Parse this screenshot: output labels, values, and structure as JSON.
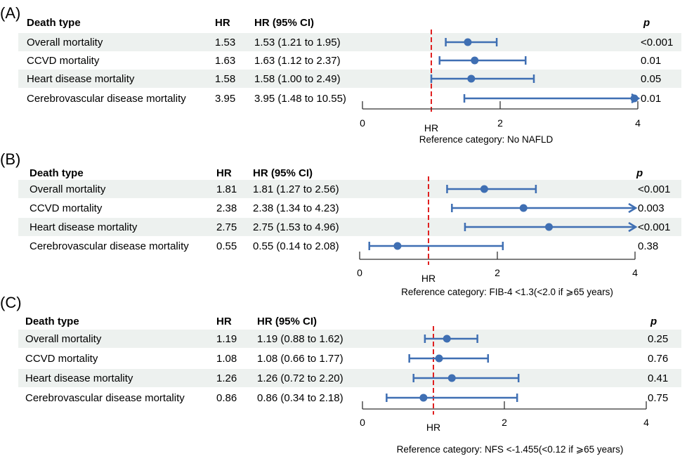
{
  "chart_data": [
    {
      "type": "forest",
      "panel_label": "(A)",
      "headers": {
        "death_type": "Death type",
        "hr": "HR",
        "hr_ci": "HR (95% CI)",
        "p": "p"
      },
      "rows": [
        {
          "label": "Overall mortality",
          "hr": 1.53,
          "hr_text": "1.53",
          "ci_text": "1.53 (1.21 to 1.95)",
          "lo": 1.21,
          "hi": 1.95,
          "p": "<0.001"
        },
        {
          "label": "CCVD mortality",
          "hr": 1.63,
          "hr_text": "1.63",
          "ci_text": "1.63 (1.12 to 2.37)",
          "lo": 1.12,
          "hi": 2.37,
          "p": "0.01"
        },
        {
          "label": "Heart disease mortality",
          "hr": 1.58,
          "hr_text": "1.58",
          "ci_text": "1.58 (1.00 to 2.49)",
          "lo": 1.0,
          "hi": 2.49,
          "p": "0.05"
        },
        {
          "label": "Cerebrovascular disease mortality",
          "hr": 3.95,
          "hr_text": "3.95",
          "ci_text": "3.95 (1.48 to 10.55)",
          "lo": 1.48,
          "hi": 10.55,
          "p": "0.01"
        }
      ],
      "xlim": [
        0,
        4
      ],
      "xticks": [
        "0",
        "2",
        "4"
      ],
      "xlabel": "HR",
      "reference_line": 1,
      "reference_text": "Reference category: No NAFLD"
    },
    {
      "type": "forest",
      "panel_label": "(B)",
      "headers": {
        "death_type": "Death type",
        "hr": "HR",
        "hr_ci": "HR (95% CI)",
        "p": "p"
      },
      "rows": [
        {
          "label": "Overall mortality",
          "hr": 1.81,
          "hr_text": "1.81",
          "ci_text": "1.81 (1.27 to 2.56)",
          "lo": 1.27,
          "hi": 2.56,
          "p": "<0.001"
        },
        {
          "label": "CCVD mortality",
          "hr": 2.38,
          "hr_text": "2.38",
          "ci_text": "2.38 (1.34 to 4.23)",
          "lo": 1.34,
          "hi": 4.23,
          "p": "0.003"
        },
        {
          "label": "Heart disease mortality",
          "hr": 2.75,
          "hr_text": "2.75",
          "ci_text": "2.75 (1.53 to 4.96)",
          "lo": 1.53,
          "hi": 4.96,
          "p": "<0.001"
        },
        {
          "label": "Cerebrovascular disease mortality",
          "hr": 0.55,
          "hr_text": "0.55",
          "ci_text": "0.55 (0.14 to 2.08)",
          "lo": 0.14,
          "hi": 2.08,
          "p": "0.38"
        }
      ],
      "xlim": [
        0,
        4
      ],
      "xticks": [
        "0",
        "2",
        "4"
      ],
      "xlabel": "HR",
      "reference_line": 1,
      "reference_text": "Reference category: FIB-4 <1.3(<2.0 if ⩾65 years)"
    },
    {
      "type": "forest",
      "panel_label": "(C)",
      "headers": {
        "death_type": "Death type",
        "hr": "HR",
        "hr_ci": "HR (95% CI)",
        "p": "p"
      },
      "rows": [
        {
          "label": "Overall mortality",
          "hr": 1.19,
          "hr_text": "1.19",
          "ci_text": "1.19 (0.88 to 1.62)",
          "lo": 0.88,
          "hi": 1.62,
          "p": "0.25"
        },
        {
          "label": "CCVD mortality",
          "hr": 1.08,
          "hr_text": "1.08",
          "ci_text": "1.08 (0.66 to 1.77)",
          "lo": 0.66,
          "hi": 1.77,
          "p": "0.76"
        },
        {
          "label": "Heart disease mortality",
          "hr": 1.26,
          "hr_text": "1.26",
          "ci_text": "1.26 (0.72 to 2.20)",
          "lo": 0.72,
          "hi": 2.2,
          "p": "0.41"
        },
        {
          "label": "Cerebrovascular disease mortality",
          "hr": 0.86,
          "hr_text": "0.86",
          "ci_text": "0.86 (0.34 to 2.18)",
          "lo": 0.34,
          "hi": 2.18,
          "p": "0.75"
        }
      ],
      "xlim": [
        0,
        4
      ],
      "xticks": [
        "0",
        "2",
        "4"
      ],
      "xlabel": "HR",
      "reference_line": 1,
      "reference_text": "Reference category: NFS <-1.455(<0.12 if ⩾65 years)"
    }
  ],
  "colors": {
    "marker": "#3f6fb3",
    "reference_line": "#e02020",
    "stripe": "#edf1ef",
    "axis": "#333333"
  }
}
